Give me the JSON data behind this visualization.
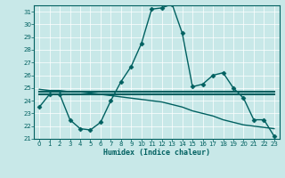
{
  "title": "",
  "xlabel": "Humidex (Indice chaleur)",
  "xlim": [
    -0.5,
    23.5
  ],
  "ylim": [
    21,
    31.5
  ],
  "xticks": [
    0,
    1,
    2,
    3,
    4,
    5,
    6,
    7,
    8,
    9,
    10,
    11,
    12,
    13,
    14,
    15,
    16,
    17,
    18,
    19,
    20,
    21,
    22,
    23
  ],
  "yticks": [
    21,
    22,
    23,
    24,
    25,
    26,
    27,
    28,
    29,
    30,
    31
  ],
  "bg_color": "#c8e8e8",
  "line_color": "#006060",
  "grid_color": "#ffffff",
  "series": {
    "line1": {
      "x": [
        0,
        1,
        2,
        3,
        4,
        5,
        6,
        7,
        8,
        9,
        10,
        11,
        12,
        13,
        14,
        15,
        16,
        17,
        18,
        19,
        20,
        21,
        22,
        23
      ],
      "y": [
        23.5,
        24.5,
        24.5,
        22.5,
        21.8,
        21.7,
        22.3,
        24.0,
        25.5,
        26.7,
        28.5,
        31.2,
        31.3,
        31.6,
        29.3,
        25.1,
        25.3,
        26.0,
        26.2,
        25.0,
        24.2,
        22.5,
        22.5,
        21.2
      ],
      "marker": "D",
      "markersize": 2.5,
      "linewidth": 1.0
    },
    "line2": {
      "x": [
        0,
        1,
        2,
        3,
        4,
        5,
        6,
        7,
        8,
        9,
        10,
        11,
        12,
        13,
        14,
        15,
        16,
        17,
        18,
        19,
        20,
        21,
        22,
        23
      ],
      "y": [
        24.5,
        24.5,
        24.5,
        24.5,
        24.5,
        24.5,
        24.5,
        24.5,
        24.5,
        24.5,
        24.5,
        24.5,
        24.5,
        24.5,
        24.5,
        24.5,
        24.5,
        24.5,
        24.5,
        24.5,
        24.5,
        24.5,
        24.5,
        24.5
      ],
      "marker": null,
      "markersize": 0,
      "linewidth": 1.5
    },
    "line3": {
      "x": [
        0,
        1,
        2,
        3,
        4,
        5,
        6,
        7,
        8,
        9,
        10,
        11,
        12,
        13,
        14,
        15,
        16,
        17,
        18,
        19,
        20,
        21,
        22,
        23
      ],
      "y": [
        24.7,
        24.7,
        24.7,
        24.7,
        24.7,
        24.7,
        24.7,
        24.7,
        24.7,
        24.7,
        24.7,
        24.7,
        24.7,
        24.7,
        24.7,
        24.7,
        24.7,
        24.7,
        24.7,
        24.7,
        24.7,
        24.7,
        24.7,
        24.7
      ],
      "marker": null,
      "markersize": 0,
      "linewidth": 1.5
    },
    "line4": {
      "x": [
        0,
        1,
        2,
        3,
        4,
        5,
        6,
        7,
        8,
        9,
        10,
        11,
        12,
        13,
        14,
        15,
        16,
        17,
        18,
        19,
        20,
        21,
        22,
        23
      ],
      "y": [
        24.9,
        24.8,
        24.8,
        24.7,
        24.7,
        24.6,
        24.5,
        24.4,
        24.3,
        24.2,
        24.1,
        24.0,
        23.9,
        23.7,
        23.5,
        23.2,
        23.0,
        22.8,
        22.5,
        22.3,
        22.1,
        22.0,
        21.9,
        21.8
      ],
      "marker": null,
      "markersize": 0,
      "linewidth": 1.0
    }
  }
}
